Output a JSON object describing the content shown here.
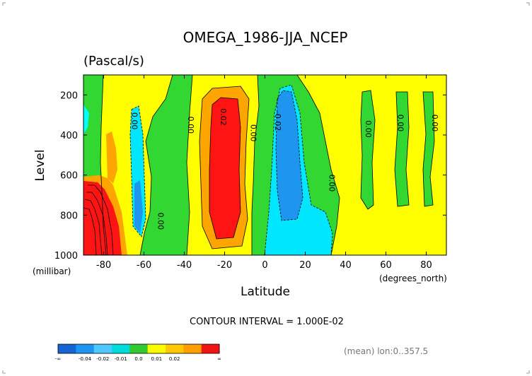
{
  "chart_data": {
    "type": "heatmap",
    "title": "OMEGA_1986-JJA_NCEP",
    "subtitle": "(Pascal/s)",
    "xlabel": "Latitude",
    "ylabel": "Level",
    "x_units": "(degrees_north)",
    "y_units": "(millibar)",
    "xlim": [
      -90,
      90
    ],
    "ylim": [
      1000,
      100
    ],
    "x_ticks": [
      -80,
      -60,
      -40,
      -20,
      0,
      20,
      40,
      60,
      80
    ],
    "y_ticks": [
      200,
      400,
      600,
      800,
      1000
    ],
    "contour_interval_text": "CONTOUR INTERVAL = 1.000E-02",
    "footer_text": "(mean) lon:0..357.5",
    "contour_labels": [
      {
        "text": "0.00",
        "lat": -66,
        "level": 330
      },
      {
        "text": "0.00",
        "lat": -53,
        "level": 830
      },
      {
        "text": "0.00",
        "lat": -38,
        "level": 350
      },
      {
        "text": "0.02",
        "lat": -22,
        "level": 310
      },
      {
        "text": "0.00",
        "lat": -7,
        "level": 390
      },
      {
        "text": "-0.02",
        "lat": 5,
        "level": 330
      },
      {
        "text": "0.00",
        "lat": 32,
        "level": 640
      },
      {
        "text": "0.00",
        "lat": 50,
        "level": 370
      },
      {
        "text": "0.00",
        "lat": 66,
        "level": 340
      },
      {
        "text": "0.00",
        "lat": 83,
        "level": 340
      }
    ],
    "colorbar": {
      "colors": [
        "#1464d2",
        "#1e96f0",
        "#50c8ff",
        "#00dcdc",
        "#32c832",
        "#fafa00",
        "#ffc800",
        "#ffa000",
        "#f01414"
      ],
      "labels": [
        "-∞",
        "-0.04",
        "-0.02",
        "-0.01",
        "0.0",
        "0.01",
        "0.02",
        "∞"
      ]
    },
    "colors": {
      "neg3": "#1e96f0",
      "neg2": "#00e6ff",
      "neg1": "#00ffff",
      "zero": "#32d732",
      "pos1": "#ffff00",
      "pos2": "#ffa500",
      "pos3": "#ff1414"
    }
  }
}
